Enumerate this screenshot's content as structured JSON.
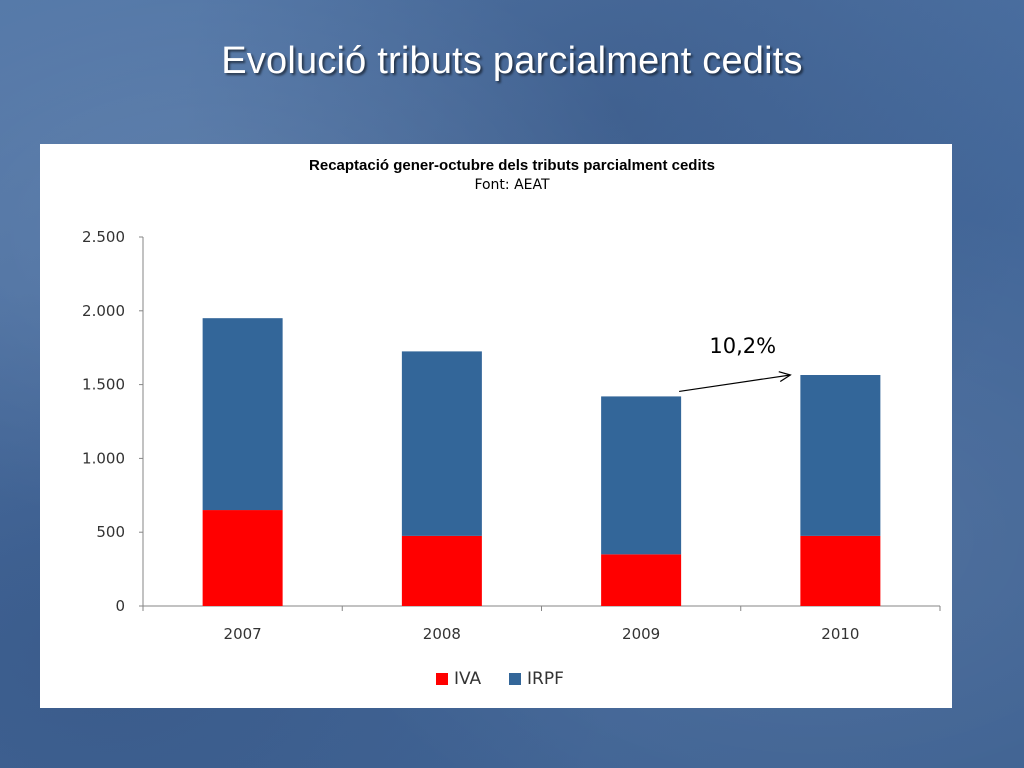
{
  "slide": {
    "title": "Evolució tributs parcialment cedits"
  },
  "chart_data": {
    "type": "bar",
    "stacked": true,
    "title": "Recaptació gener-octubre dels tributs parcialment cedits",
    "subtitle": "Font: AEAT",
    "categories": [
      "2007",
      "2008",
      "2009",
      "2010"
    ],
    "series": [
      {
        "name": "IVA",
        "color": "#ff0000",
        "values": [
          650,
          475,
          350,
          475
        ]
      },
      {
        "name": "IRPF",
        "color": "#336699",
        "values": [
          1300,
          1250,
          1070,
          1090
        ]
      }
    ],
    "ylim": [
      0,
      2500
    ],
    "yticks": [
      0,
      500,
      1000,
      1500,
      2000,
      2500
    ],
    "ytick_labels": [
      "0",
      "500",
      "1.000",
      "1.500",
      "2.000",
      "2.500"
    ],
    "grid": false,
    "legend_position": "bottom",
    "annotation": {
      "text": "10,2%",
      "from_category": "2009",
      "to_category": "2010"
    }
  }
}
